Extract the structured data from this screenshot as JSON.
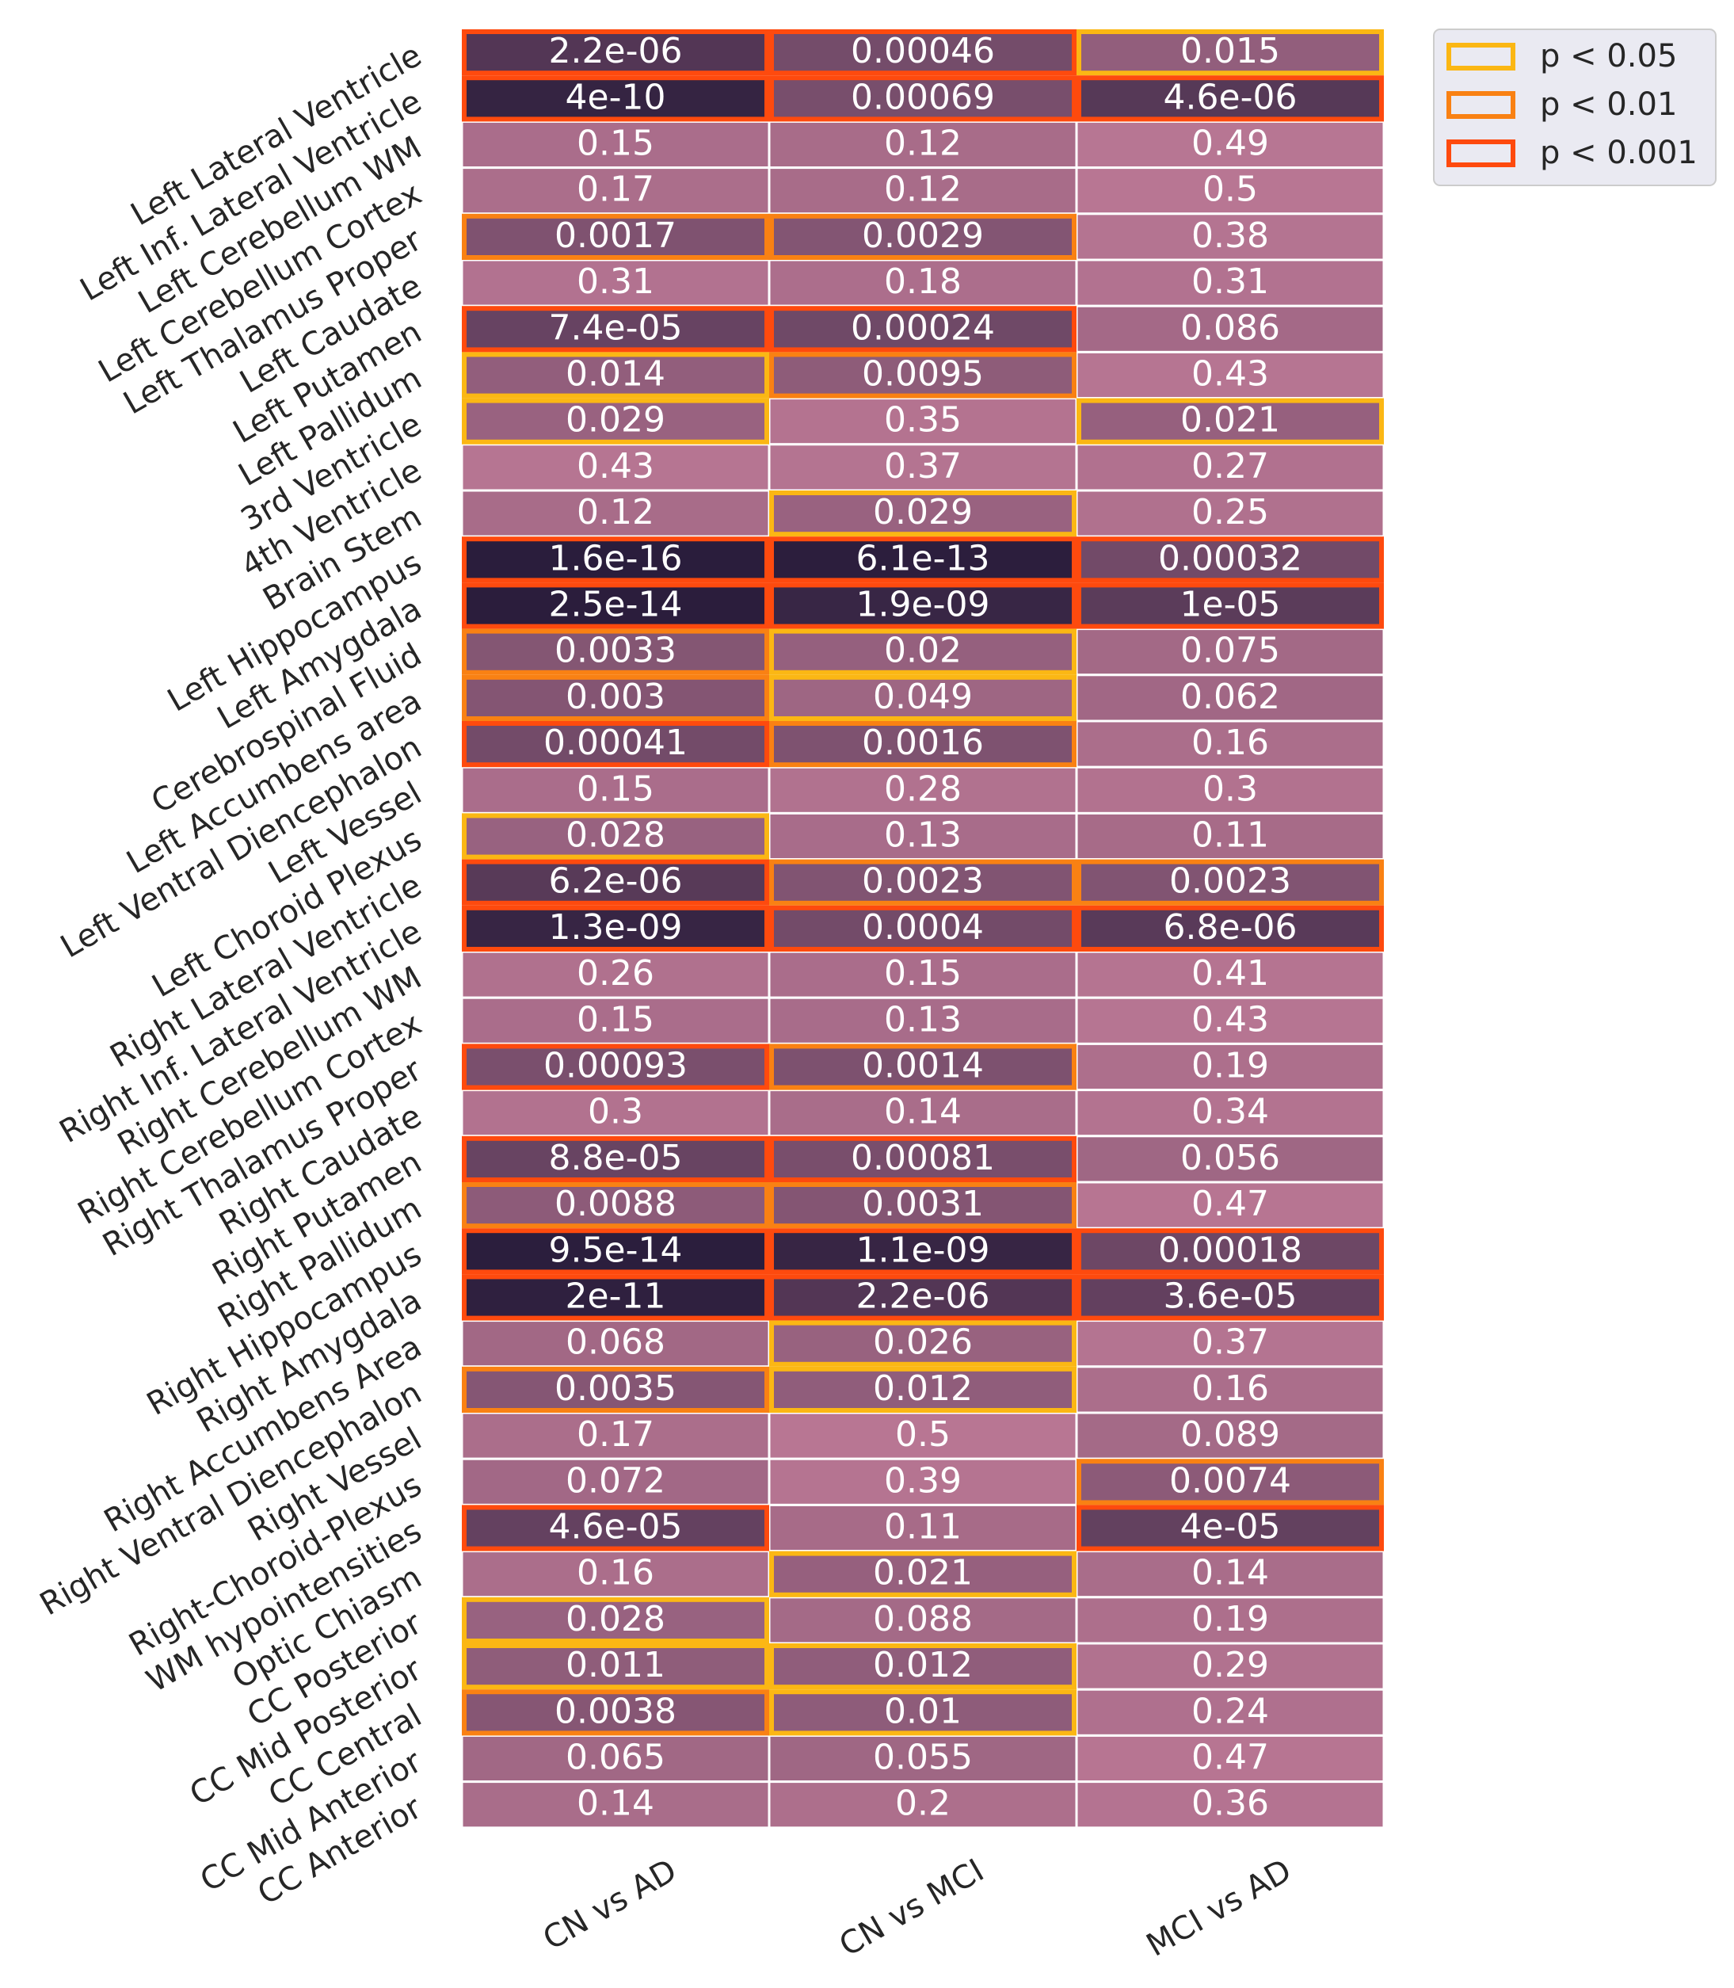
{
  "chart_data": {
    "type": "heatmap",
    "title": "",
    "xlabel": "",
    "ylabel": "",
    "columns": [
      "CN vs AD",
      "CN vs MCI",
      "MCI vs AD"
    ],
    "rows": [
      "Left Lateral Ventricle",
      "Left Inf. Lateral Ventricle",
      "Left Cerebellum WM",
      "Left Cerebellum Cortex",
      "Left Thalamus Proper",
      "Left Caudate",
      "Left Putamen",
      "Left Pallidum",
      "3rd Ventricle",
      "4th Ventricle",
      "Brain Stem",
      "Left Hippocampus",
      "Left Amygdala",
      "Cerebrospinal Fluid",
      "Left Accumbens area",
      "Left Ventral Diencephalon",
      "Left Vessel",
      "Left Choroid Plexus",
      "Right Lateral Ventricle",
      "Right Inf. Lateral Ventricle",
      "Right Cerebellum WM",
      "Right Cerebellum Cortex",
      "Right Thalamus Proper",
      "Right Caudate",
      "Right Putamen",
      "Right Pallidum",
      "Right Hippocampus",
      "Right Amygdala",
      "Right Accumbens Area",
      "Right Ventral Diencephalon",
      "Right Vessel",
      "Right-Choroid-Plexus",
      "WM hypointensities",
      "Optic Chiasm",
      "CC Posterior",
      "CC Mid Posterior",
      "CC Central",
      "CC Mid Anterior",
      "CC Anterior"
    ],
    "values": [
      [
        "2.2e-06",
        "0.00046",
        "0.015"
      ],
      [
        "4e-10",
        "0.00069",
        "4.6e-06"
      ],
      [
        "0.15",
        "0.12",
        "0.49"
      ],
      [
        "0.17",
        "0.12",
        "0.5"
      ],
      [
        "0.0017",
        "0.0029",
        "0.38"
      ],
      [
        "0.31",
        "0.18",
        "0.31"
      ],
      [
        "7.4e-05",
        "0.00024",
        "0.086"
      ],
      [
        "0.014",
        "0.0095",
        "0.43"
      ],
      [
        "0.029",
        "0.35",
        "0.021"
      ],
      [
        "0.43",
        "0.37",
        "0.27"
      ],
      [
        "0.12",
        "0.029",
        "0.25"
      ],
      [
        "1.6e-16",
        "6.1e-13",
        "0.00032"
      ],
      [
        "2.5e-14",
        "1.9e-09",
        "1e-05"
      ],
      [
        "0.0033",
        "0.02",
        "0.075"
      ],
      [
        "0.003",
        "0.049",
        "0.062"
      ],
      [
        "0.00041",
        "0.0016",
        "0.16"
      ],
      [
        "0.15",
        "0.28",
        "0.3"
      ],
      [
        "0.028",
        "0.13",
        "0.11"
      ],
      [
        "6.2e-06",
        "0.0023",
        "0.0023"
      ],
      [
        "1.3e-09",
        "0.0004",
        "6.8e-06"
      ],
      [
        "0.26",
        "0.15",
        "0.41"
      ],
      [
        "0.15",
        "0.13",
        "0.43"
      ],
      [
        "0.00093",
        "0.0014",
        "0.19"
      ],
      [
        "0.3",
        "0.14",
        "0.34"
      ],
      [
        "8.8e-05",
        "0.00081",
        "0.056"
      ],
      [
        "0.0088",
        "0.0031",
        "0.47"
      ],
      [
        "9.5e-14",
        "1.1e-09",
        "0.00018"
      ],
      [
        "2e-11",
        "2.2e-06",
        "3.6e-05"
      ],
      [
        "0.068",
        "0.026",
        "0.37"
      ],
      [
        "0.0035",
        "0.012",
        "0.16"
      ],
      [
        "0.17",
        "0.5",
        "0.089"
      ],
      [
        "0.072",
        "0.39",
        "0.0074"
      ],
      [
        "4.6e-05",
        "0.11",
        "4e-05"
      ],
      [
        "0.16",
        "0.021",
        "0.14"
      ],
      [
        "0.028",
        "0.088",
        "0.19"
      ],
      [
        "0.011",
        "0.012",
        "0.29"
      ],
      [
        "0.0038",
        "0.01",
        "0.24"
      ],
      [
        "0.065",
        "0.055",
        "0.47"
      ],
      [
        "0.14",
        "0.2",
        "0.36"
      ]
    ],
    "legend": {
      "placement": "top-right",
      "entries": [
        {
          "label": "p < 0.05",
          "threshold": 0.05,
          "color": "#fbb714"
        },
        {
          "label": "p < 0.01",
          "threshold": 0.01,
          "color": "#f98113"
        },
        {
          "label": "p < 0.001",
          "threshold": 0.001,
          "color": "#fe4a0e"
        }
      ]
    },
    "colormap": {
      "dark": "#2a1d3c",
      "light": "#c07b98"
    },
    "grid": false
  }
}
